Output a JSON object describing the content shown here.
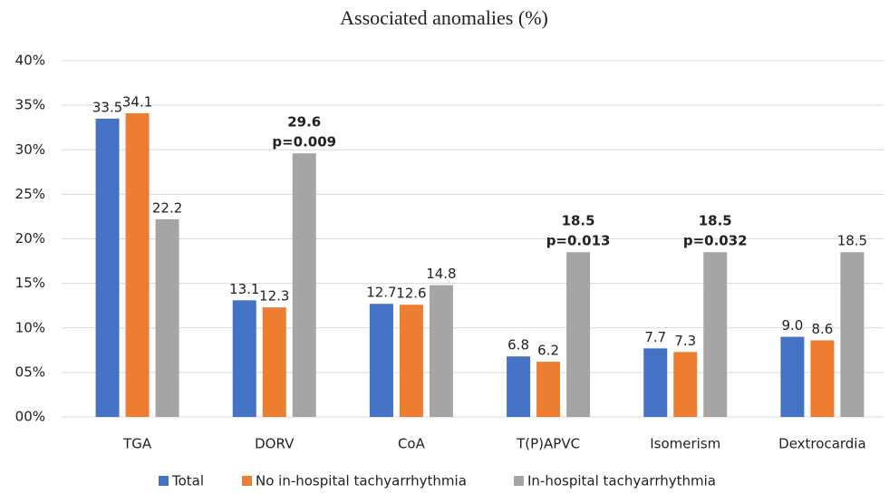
{
  "chart_data": {
    "type": "bar",
    "title": "Associated anomalies (%)",
    "categories": [
      "TGA",
      "DORV",
      "CoA",
      "T(P)APVC",
      "Isomerism",
      "Dextrocardia"
    ],
    "series": [
      {
        "name": "Total",
        "color": "#4472c4",
        "values": [
          33.5,
          13.1,
          12.7,
          6.8,
          7.7,
          9.0
        ],
        "value_labels": [
          "33.5",
          "13.1",
          "12.7",
          "6.8",
          "7.7",
          "9.0"
        ]
      },
      {
        "name": "No in-hospital tachyarrhythmia",
        "color": "#ed7d31",
        "values": [
          34.1,
          12.3,
          12.6,
          6.2,
          7.3,
          8.6
        ],
        "value_labels": [
          "34.1",
          "12.3",
          "12.6",
          "6.2",
          "7.3",
          "8.6"
        ]
      },
      {
        "name": "In-hospital tachyarrhythmia",
        "color": "#a5a5a5",
        "values": [
          22.2,
          29.6,
          14.8,
          18.5,
          18.5,
          18.5
        ],
        "value_labels": [
          "22.2",
          "29.6",
          "14.8",
          "18.5",
          "18.5",
          "18.5"
        ],
        "p_values": [
          null,
          "p=0.009",
          null,
          "p=0.013",
          "p=0.032",
          null
        ]
      }
    ],
    "ylim": [
      0,
      40
    ],
    "yticks": [
      {
        "value": 0,
        "label": "00%"
      },
      {
        "value": 5,
        "label": "05%"
      },
      {
        "value": 10,
        "label": "10%"
      },
      {
        "value": 15,
        "label": "15%"
      },
      {
        "value": 20,
        "label": "20%"
      },
      {
        "value": 25,
        "label": "25%"
      },
      {
        "value": 30,
        "label": "30%"
      },
      {
        "value": 35,
        "label": "35%"
      },
      {
        "value": 40,
        "label": "40%"
      }
    ],
    "grid": true,
    "legend": "bottom"
  }
}
